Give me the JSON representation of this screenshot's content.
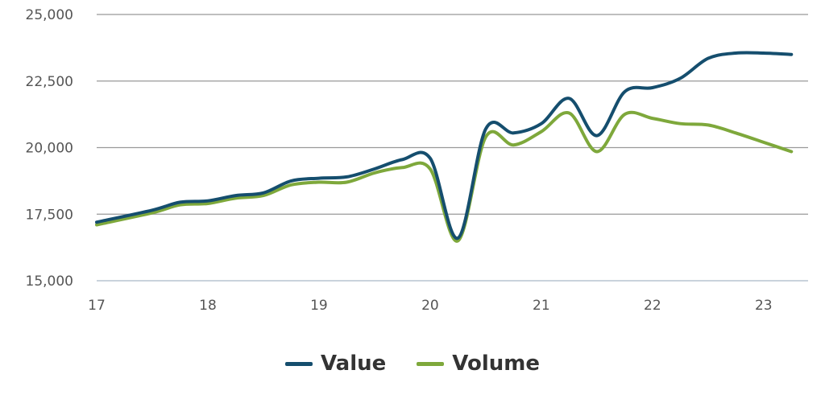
{
  "chart_data": {
    "type": "line",
    "x_ticks": [
      "17",
      "18",
      "19",
      "20",
      "21",
      "22",
      "23"
    ],
    "y_ticks": [
      "15,000",
      "17,500",
      "20,000",
      "22,500",
      "25,000"
    ],
    "ylim": [
      15000,
      25000
    ],
    "xlim": [
      17,
      23.4
    ],
    "grid": true,
    "legend_position": "bottom-center",
    "series": [
      {
        "name": "Value",
        "color": "#154e6e",
        "points": [
          [
            17,
            17200
          ],
          [
            17.5,
            17650
          ],
          [
            17.75,
            17950
          ],
          [
            18,
            18000
          ],
          [
            18.25,
            18200
          ],
          [
            18.5,
            18300
          ],
          [
            18.75,
            18750
          ],
          [
            19,
            18850
          ],
          [
            19.25,
            18900
          ],
          [
            19.5,
            19200
          ],
          [
            19.75,
            19550
          ],
          [
            20,
            19600
          ],
          [
            20.25,
            16600
          ],
          [
            20.5,
            20700
          ],
          [
            20.75,
            20550
          ],
          [
            21,
            20900
          ],
          [
            21.25,
            21850
          ],
          [
            21.5,
            20450
          ],
          [
            21.75,
            22100
          ],
          [
            22,
            22250
          ],
          [
            22.25,
            22600
          ],
          [
            22.5,
            23350
          ],
          [
            22.75,
            23550
          ],
          [
            23,
            23550
          ],
          [
            23.25,
            23500
          ]
        ]
      },
      {
        "name": "Volume",
        "color": "#7ea83b",
        "points": [
          [
            17,
            17100
          ],
          [
            17.5,
            17550
          ],
          [
            17.75,
            17850
          ],
          [
            18,
            17900
          ],
          [
            18.25,
            18100
          ],
          [
            18.5,
            18200
          ],
          [
            18.75,
            18600
          ],
          [
            19,
            18700
          ],
          [
            19.25,
            18700
          ],
          [
            19.5,
            19050
          ],
          [
            19.75,
            19250
          ],
          [
            20,
            19200
          ],
          [
            20.25,
            16500
          ],
          [
            20.5,
            20400
          ],
          [
            20.75,
            20100
          ],
          [
            21,
            20600
          ],
          [
            21.25,
            21300
          ],
          [
            21.5,
            19850
          ],
          [
            21.75,
            21250
          ],
          [
            22,
            21100
          ],
          [
            22.25,
            20900
          ],
          [
            22.5,
            20850
          ],
          [
            22.75,
            20550
          ],
          [
            23,
            20200
          ],
          [
            23.25,
            19850
          ]
        ]
      }
    ]
  },
  "colors": {
    "grid": "#999999",
    "baseline": "#c9d3dc"
  }
}
